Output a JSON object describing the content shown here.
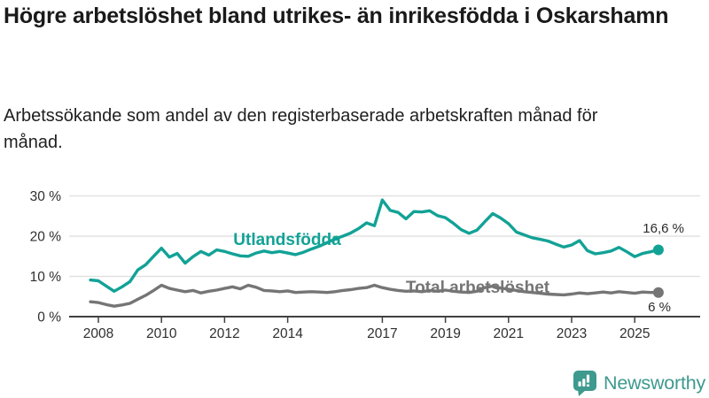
{
  "header": {
    "title": "Högre arbetslöshet bland utrikes- än inrikesfödda i Oskarshamn",
    "subtitle": "Arbetssökande som andel av den registerbaserade arbetskraften månad för månad."
  },
  "footer": {
    "brand": "Newsworthy",
    "logo_icon": "bar-chart-speech-bubble-icon"
  },
  "colors": {
    "series_teal": "#12a296",
    "series_gray": "#757575",
    "grid": "#dedede",
    "axis": "#404040",
    "text_dark": "#1a1a1a",
    "value_label": "#2b2b2b",
    "brand_teal": "#3e998e"
  },
  "chart_data": {
    "type": "line",
    "title": "Högre arbetslöshet bland utrikes- än inrikesfödda i Oskarshamn",
    "subtitle": "Arbetssökande som andel av den registerbaserade arbetskraften månad för månad.",
    "unit": "%",
    "grid": "horizontal-only",
    "legend_position": "inline-labels-on-lines",
    "x_start_year": 2007.75,
    "x_step_years": 0.25,
    "x_end_year": 2025.75,
    "x_tick_years": [
      2008,
      2010,
      2012,
      2014,
      2017,
      2019,
      2021,
      2023,
      2025
    ],
    "x_tick_labels": [
      "2008",
      "2010",
      "2012",
      "2014",
      "2017",
      "2019",
      "2021",
      "2023",
      "2025"
    ],
    "y_ticks": [
      0,
      10,
      20,
      30
    ],
    "y_tick_labels": [
      "0 %",
      "10 %",
      "20 %",
      "30 %"
    ],
    "y_range": [
      0,
      32
    ],
    "series": [
      {
        "name": "Utlandsfödda",
        "color": "#12a296",
        "end_label": "16,6 %",
        "end_value": 16.6,
        "values": [
          9.1,
          8.9,
          7.6,
          6.3,
          7.4,
          8.7,
          11.6,
          12.9,
          15.0,
          17.0,
          14.8,
          15.7,
          13.3,
          14.9,
          16.2,
          15.3,
          16.6,
          16.2,
          15.6,
          15.1,
          15.0,
          15.8,
          16.3,
          15.9,
          16.2,
          15.8,
          15.4,
          16.0,
          16.8,
          17.5,
          18.4,
          19.3,
          20.0,
          20.8,
          21.9,
          23.3,
          22.6,
          29.0,
          26.4,
          25.9,
          24.3,
          26.1,
          26.0,
          26.3,
          25.1,
          24.6,
          23.2,
          21.6,
          20.7,
          21.5,
          23.6,
          25.6,
          24.5,
          23.1,
          21.0,
          20.3,
          19.6,
          19.2,
          18.8,
          18.0,
          17.3,
          17.8,
          18.9,
          16.4,
          15.6,
          15.9,
          16.3,
          17.2,
          16.1,
          14.9,
          15.7,
          16.1,
          16.6
        ]
      },
      {
        "name": "Total arbetslöshet",
        "color": "#757575",
        "end_label": "6 %",
        "end_value": 6,
        "values": [
          3.7,
          3.5,
          3.0,
          2.6,
          2.9,
          3.3,
          4.3,
          5.3,
          6.5,
          7.8,
          7.0,
          6.6,
          6.2,
          6.5,
          5.9,
          6.3,
          6.6,
          7.0,
          7.4,
          6.9,
          7.8,
          7.3,
          6.5,
          6.4,
          6.2,
          6.4,
          6.0,
          6.1,
          6.2,
          6.1,
          6.0,
          6.2,
          6.5,
          6.7,
          7.0,
          7.2,
          7.8,
          7.2,
          6.8,
          6.5,
          6.3,
          6.4,
          6.2,
          6.5,
          6.3,
          6.6,
          6.3,
          6.1,
          6.0,
          6.3,
          7.2,
          7.6,
          7.1,
          6.8,
          6.5,
          6.2,
          6.0,
          5.8,
          5.6,
          5.5,
          5.4,
          5.6,
          5.9,
          5.7,
          5.9,
          6.1,
          5.9,
          6.2,
          6.0,
          5.8,
          6.1,
          6.0,
          6.0
        ]
      }
    ]
  }
}
